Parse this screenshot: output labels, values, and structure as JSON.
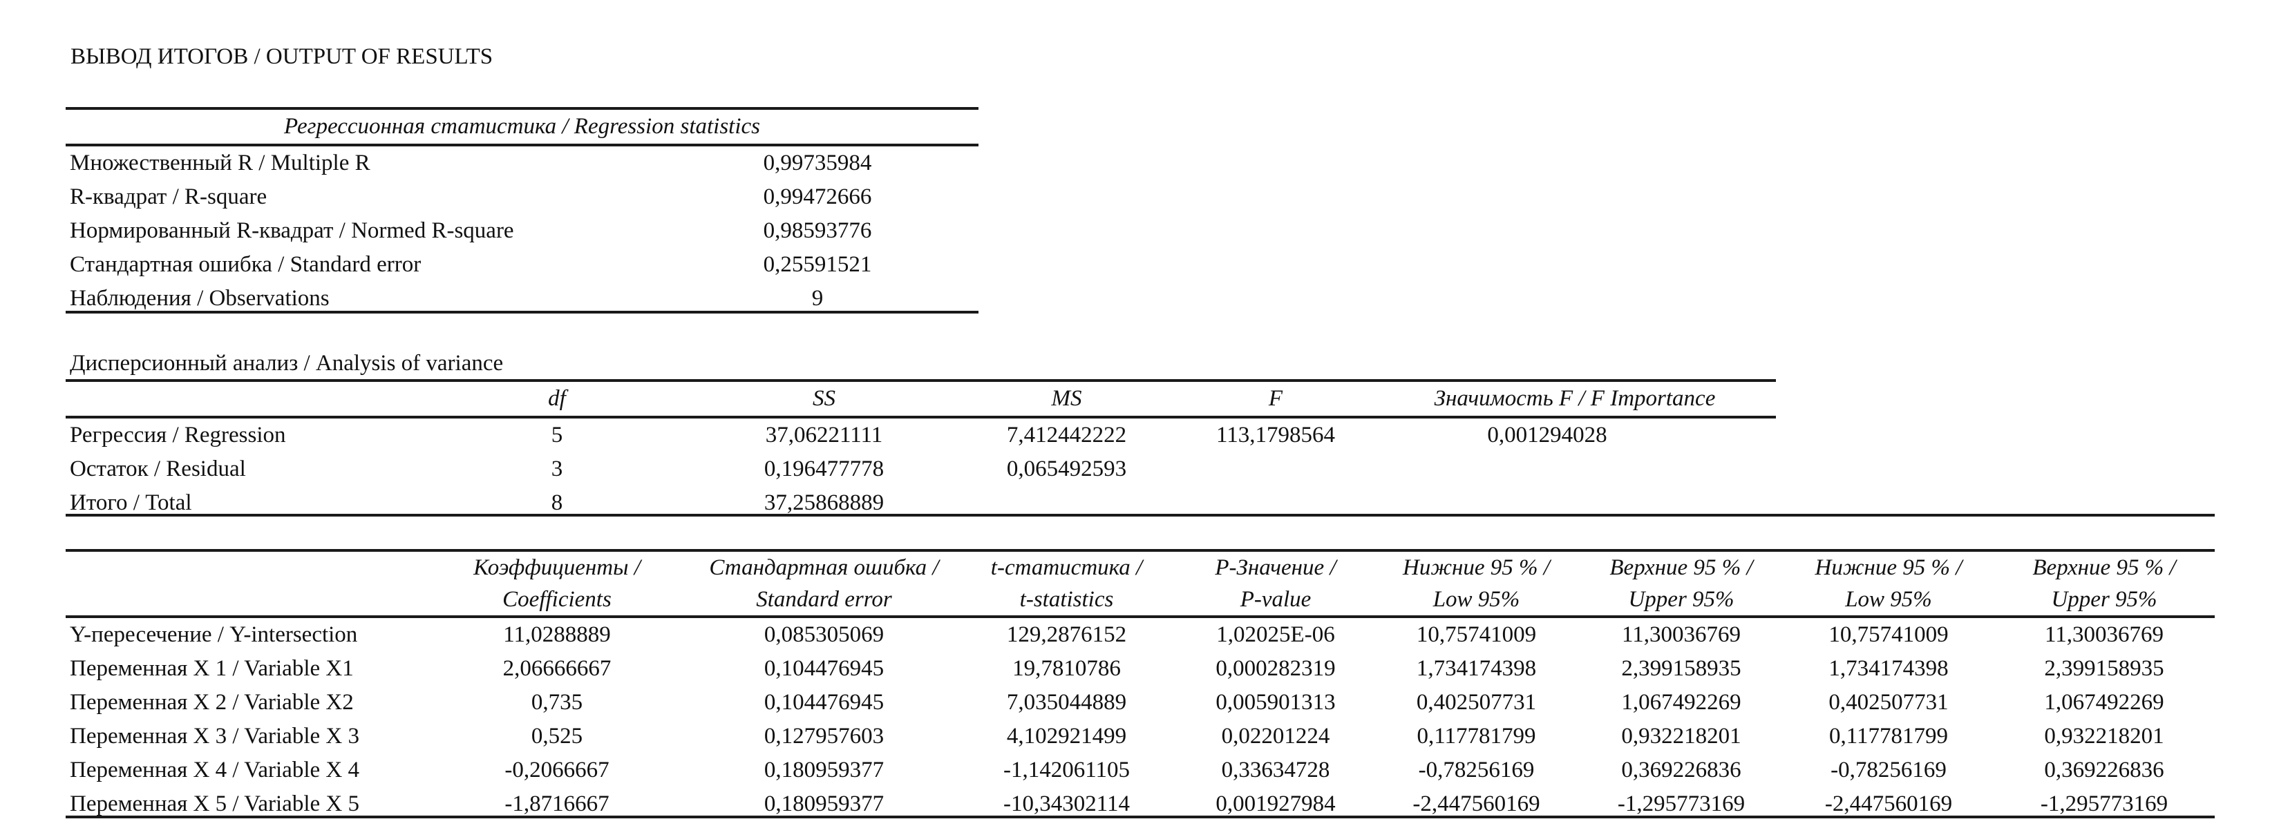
{
  "title": "ВЫВОД ИТОГОВ / OUTPUT OF RESULTS",
  "regression_statistics": {
    "header": "Регрессионная статистика / Regression statistics",
    "rows": [
      {
        "label": "Множественный R / Multiple R",
        "value": "0,99735984"
      },
      {
        "label": "R-квадрат / R-square",
        "value": "0,99472666"
      },
      {
        "label": "Нормированный R-квадрат / Normed R-square",
        "value": "0,98593776"
      },
      {
        "label": "Стандартная ошибка / Standard error",
        "value": "0,25591521"
      },
      {
        "label": "Наблюдения / Observations",
        "value": "9"
      }
    ]
  },
  "anova": {
    "title": "Дисперсионный анализ / Analysis of variance",
    "headers": [
      "",
      "df",
      "SS",
      "MS",
      "F",
      "Значимость F / F Importance"
    ],
    "rows": [
      [
        "Регрессия / Regression",
        "5",
        "37,06221111",
        "7,412442222",
        "113,1798564",
        "0,001294028"
      ],
      [
        "Остаток / Residual",
        "3",
        "0,196477778",
        "0,065492593",
        "",
        ""
      ],
      [
        "Итого / Total",
        "8",
        "37,25868889",
        "",
        "",
        ""
      ]
    ]
  },
  "coefficients": {
    "headers_line1": [
      "",
      "Коэффициенты /",
      "Стандартная ошибка /",
      "t-статистика /",
      "P-Значение /",
      "Нижние 95 % /",
      "Верхние 95 % /",
      "Нижние 95 % /",
      "Верхние 95 % /"
    ],
    "headers_line2": [
      "",
      "Coefficients",
      "Standard error",
      "t-statistics",
      "P-value",
      "Low 95%",
      "Upper 95%",
      "Low 95%",
      "Upper 95%"
    ],
    "rows": [
      [
        "Y-пересечение / Y-intersection",
        "11,0288889",
        "0,085305069",
        "129,2876152",
        "1,02025E-06",
        "10,75741009",
        "11,30036769",
        "10,75741009",
        "11,30036769"
      ],
      [
        "Переменная X 1 / Variable X1",
        "2,06666667",
        "0,104476945",
        "19,7810786",
        "0,000282319",
        "1,734174398",
        "2,399158935",
        "1,734174398",
        "2,399158935"
      ],
      [
        "Переменная X 2 / Variable X2",
        "0,735",
        "0,104476945",
        "7,035044889",
        "0,005901313",
        "0,402507731",
        "1,067492269",
        "0,402507731",
        "1,067492269"
      ],
      [
        "Переменная X 3 / Variable X 3",
        "0,525",
        "0,127957603",
        "4,102921499",
        "0,02201224",
        "0,117781799",
        "0,932218201",
        "0,117781799",
        "0,932218201"
      ],
      [
        "Переменная X 4 / Variable X 4",
        "-0,2066667",
        "0,180959377",
        "-1,142061105",
        "0,33634728",
        "-0,78256169",
        "0,369226836",
        "-0,78256169",
        "0,369226836"
      ],
      [
        "Переменная X 5 / Variable X 5",
        "-1,8716667",
        "0,180959377",
        "-10,34302114",
        "0,001927984",
        "-2,447560169",
        "-1,295773169",
        "-2,447560169",
        "-1,295773169"
      ]
    ]
  }
}
